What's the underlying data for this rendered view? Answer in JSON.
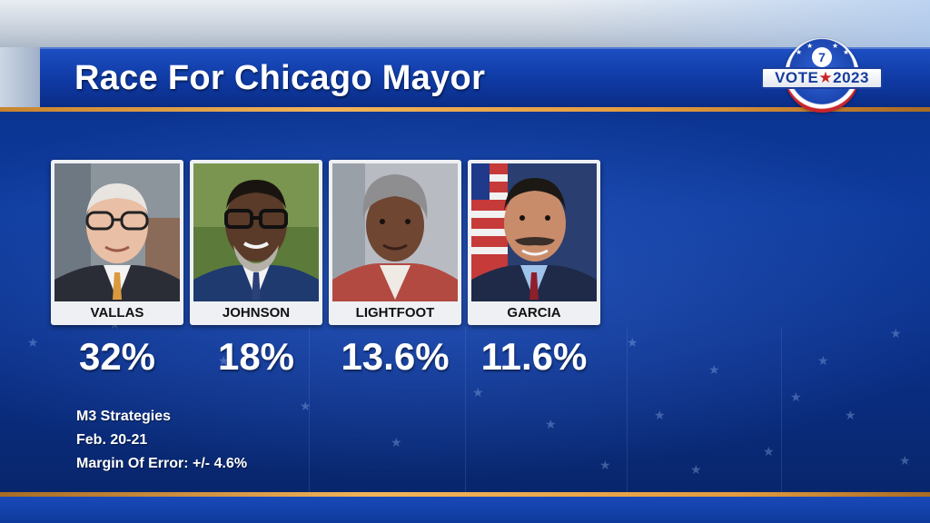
{
  "header": {
    "title": "Race For Chicago Mayor"
  },
  "logo": {
    "word_left": "VOTE",
    "word_right": "2023",
    "badge": "7",
    "icon": "abc7-vote-2023-logo"
  },
  "candidates": [
    {
      "name": "VALLAS",
      "percent": "32%"
    },
    {
      "name": "JOHNSON",
      "percent": "18%"
    },
    {
      "name": "LIGHTFOOT",
      "percent": "13.6%"
    },
    {
      "name": "GARCIA",
      "percent": "11.6%"
    }
  ],
  "poll": {
    "source": "M3 Strategies",
    "dates": "Feb. 20-21",
    "margin": "Margin Of Error: +/- 4.6%"
  },
  "colors": {
    "background": "#0d3a9c",
    "accent_gold": "#f2b45a",
    "card": "#eef0f4",
    "text": "#ffffff"
  }
}
